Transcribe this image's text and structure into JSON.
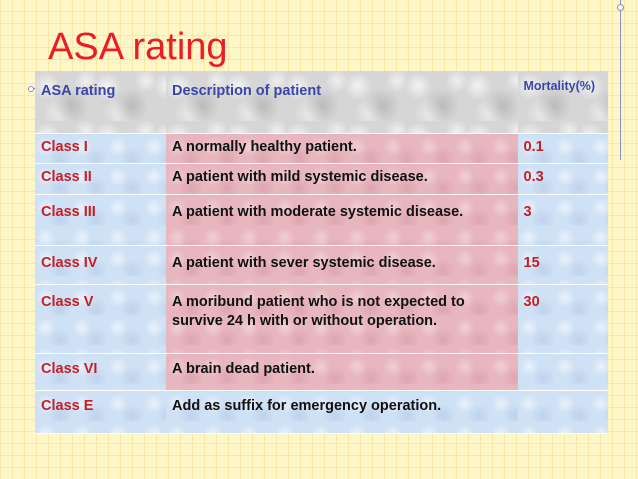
{
  "slide": {
    "title": "ASA rating"
  },
  "table": {
    "headers": [
      "ASA rating",
      "Description of patient",
      "Mortality(%)"
    ],
    "rows": [
      {
        "class": "Class I",
        "description": "A normally healthy patient.",
        "mortality": "0.1"
      },
      {
        "class": "Class II",
        "description": "A patient with mild systemic disease.",
        "mortality": "0.3"
      },
      {
        "class": "Class III",
        "description": "A patient with moderate systemic disease.",
        "mortality": "3"
      },
      {
        "class": "Class IV",
        "description": "A patient with sever systemic disease.",
        "mortality": "15"
      },
      {
        "class": "Class V",
        "description": "A moribund patient who is not expected to survive 24 h with or without operation.",
        "mortality": "30"
      },
      {
        "class": "Class VI",
        "description": "A brain dead patient.",
        "mortality": ""
      },
      {
        "class": "Class E",
        "description": "Add as suffix for emergency operation.",
        "mortality": ""
      }
    ]
  },
  "colors": {
    "title": "#ed1c24",
    "header_text": "#3a46a8",
    "class_text": "#c81d25",
    "cell_blue": "#cfe1f5",
    "cell_pink": "#e8b6bf",
    "background": "#fdf6c9"
  }
}
